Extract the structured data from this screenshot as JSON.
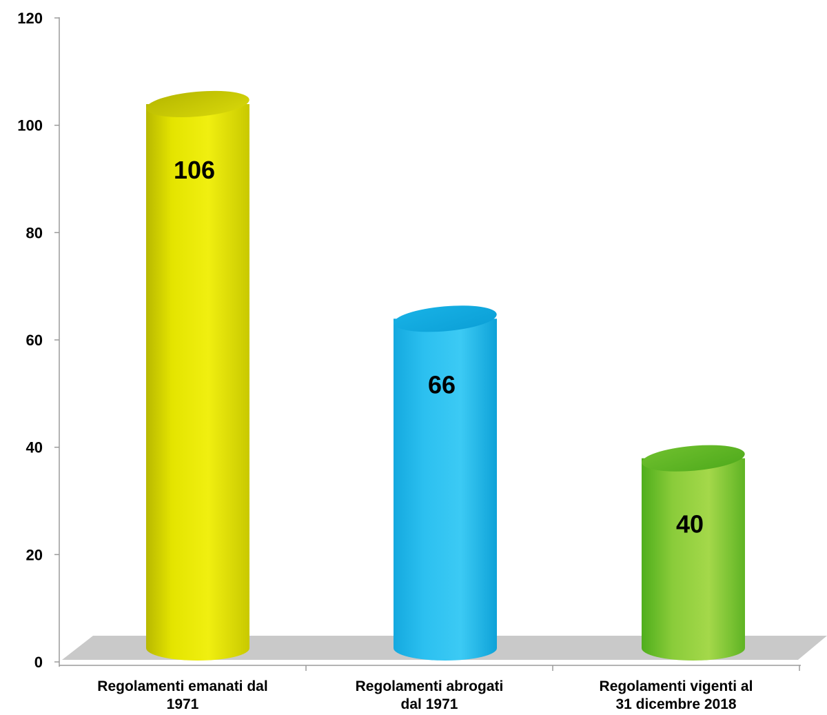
{
  "chart_data": {
    "type": "bar",
    "categories": [
      [
        "Regolamenti emanati dal",
        "1971"
      ],
      [
        "Regolamenti abrogati",
        "dal 1971"
      ],
      [
        "Regolamenti vigenti al",
        "31 dicembre 2018"
      ]
    ],
    "values": [
      106,
      66,
      40
    ],
    "data_labels": [
      "106",
      "66",
      "40"
    ],
    "bar_colors": [
      "#e6e600",
      "#22bdf0",
      "#7ccf2a"
    ],
    "bar_style": "3d-cylinder",
    "y_ticks": [
      "0",
      "20",
      "40",
      "60",
      "80",
      "100",
      "120"
    ],
    "ylim": [
      0,
      120
    ],
    "title": "",
    "xlabel": "",
    "ylabel": "",
    "grid": false,
    "legend": "none"
  }
}
